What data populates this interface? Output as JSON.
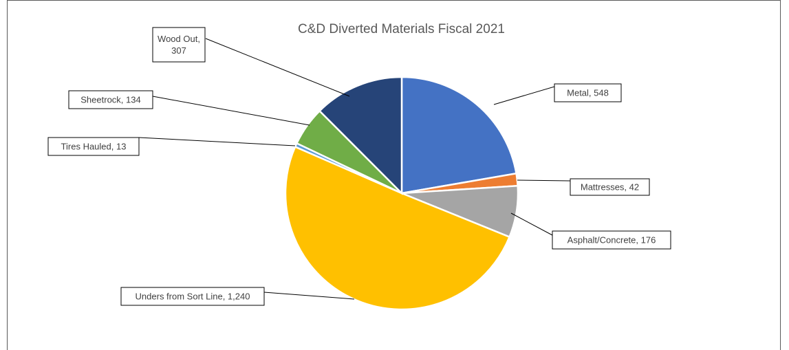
{
  "chart_data": {
    "type": "pie",
    "title": "C&D Diverted Materials Fiscal 2021",
    "slices": [
      {
        "label": "Metal",
        "value": 548,
        "display": "Metal, 548",
        "color": "#4472C4"
      },
      {
        "label": "Mattresses",
        "value": 42,
        "display": "Mattresses, 42",
        "color": "#ED7D31"
      },
      {
        "label": "Asphalt/Concrete",
        "value": 176,
        "display": "Asphalt/Concrete, 176",
        "color": "#A5A5A5"
      },
      {
        "label": "Unders from Sort Line",
        "value": 1240,
        "display": "Unders from Sort Line, 1,240",
        "color": "#FFC000"
      },
      {
        "label": "Tires Hauled",
        "value": 13,
        "display": "Tires Hauled, 13",
        "color": "#5B9BD5"
      },
      {
        "label": "Sheetrock",
        "value": 134,
        "display": "Sheetrock, 134",
        "color": "#70AD47"
      },
      {
        "label": "Wood Out",
        "value": 307,
        "display_lines": [
          "Wood Out,",
          "307"
        ],
        "color": "#264478"
      }
    ],
    "legend": "none"
  }
}
